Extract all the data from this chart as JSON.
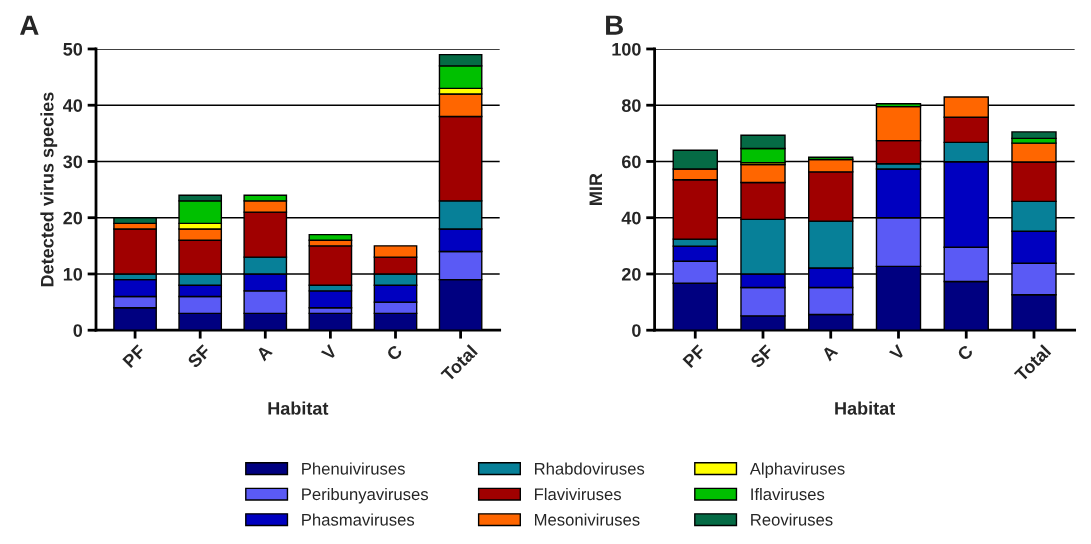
{
  "chart_data": [
    {
      "type": "bar",
      "title": "A",
      "xlabel": "Habitat",
      "ylabel": "Detected virus species",
      "categories": [
        "PF",
        "SF",
        "A",
        "V",
        "C",
        "Total"
      ],
      "stacked": true,
      "ylim": [
        0,
        50
      ],
      "yticks": [
        0,
        10,
        20,
        30,
        40,
        50
      ],
      "grid": "y",
      "legend": "bottom",
      "series": [
        {
          "name": "Phenuiviruses",
          "color": "#000080",
          "values": [
            4,
            3,
            3,
            3,
            3,
            9
          ]
        },
        {
          "name": "Peribunyaviruses",
          "color": "#5a5af5",
          "values": [
            2,
            3,
            4,
            1,
            2,
            5
          ]
        },
        {
          "name": "Phasmaviruses",
          "color": "#0000c0",
          "values": [
            3,
            2,
            3,
            3,
            3,
            4
          ]
        },
        {
          "name": "Rhabdoviruses",
          "color": "#078098",
          "values": [
            1,
            2,
            3,
            1,
            2,
            5
          ]
        },
        {
          "name": "Flaviviruses",
          "color": "#a00000",
          "values": [
            8,
            6,
            8,
            7,
            3,
            15
          ]
        },
        {
          "name": "Mesoniviruses",
          "color": "#ff6600",
          "values": [
            1,
            2,
            2,
            1,
            2,
            4
          ]
        },
        {
          "name": "Alphaviruses",
          "color": "#ffff00",
          "values": [
            0,
            1,
            0,
            0,
            0,
            1
          ]
        },
        {
          "name": "Iflaviruses",
          "color": "#00c000",
          "values": [
            0,
            4,
            1,
            1,
            0,
            4
          ]
        },
        {
          "name": "Reoviruses",
          "color": "#056b45",
          "values": [
            1,
            1,
            0,
            0,
            0,
            2
          ]
        }
      ]
    },
    {
      "type": "bar",
      "title": "B",
      "xlabel": "Habitat",
      "ylabel": "MIR",
      "categories": [
        "PF",
        "SF",
        "A",
        "V",
        "C",
        "Total"
      ],
      "stacked": true,
      "ylim": [
        0,
        100
      ],
      "yticks": [
        0,
        20,
        40,
        60,
        80,
        100
      ],
      "grid": "y",
      "series": [
        {
          "name": "Phenuiviruses",
          "color": "#000080",
          "values": [
            16.7,
            5.1,
            5.6,
            22.7,
            17.3,
            12.6
          ]
        },
        {
          "name": "Peribunyaviruses",
          "color": "#5a5af5",
          "values": [
            7.8,
            10.1,
            9.6,
            17.3,
            12.2,
            11.2
          ]
        },
        {
          "name": "Phasmaviruses",
          "color": "#0000c0",
          "values": [
            5.4,
            4.8,
            6.9,
            17.3,
            30.4,
            11.4
          ]
        },
        {
          "name": "Rhabdoviruses",
          "color": "#078098",
          "values": [
            2.5,
            19.4,
            16.7,
            1.9,
            6.9,
            10.6
          ]
        },
        {
          "name": "Flaviviruses",
          "color": "#a00000",
          "values": [
            21.1,
            13.1,
            17.5,
            8.2,
            8.9,
            14.0
          ]
        },
        {
          "name": "Mesoniviruses",
          "color": "#ff6600",
          "values": [
            3.8,
            6.4,
            4.4,
            12.1,
            7.2,
            6.7
          ]
        },
        {
          "name": "Alphaviruses",
          "color": "#ffff00",
          "values": [
            0,
            0.7,
            0,
            0,
            0,
            0
          ]
        },
        {
          "name": "Iflaviruses",
          "color": "#00c000",
          "values": [
            0,
            5.0,
            0.8,
            1.0,
            0,
            1.7
          ]
        },
        {
          "name": "Reoviruses",
          "color": "#056b45",
          "values": [
            6.7,
            4.7,
            0,
            0,
            0,
            2.3
          ]
        }
      ]
    }
  ]
}
